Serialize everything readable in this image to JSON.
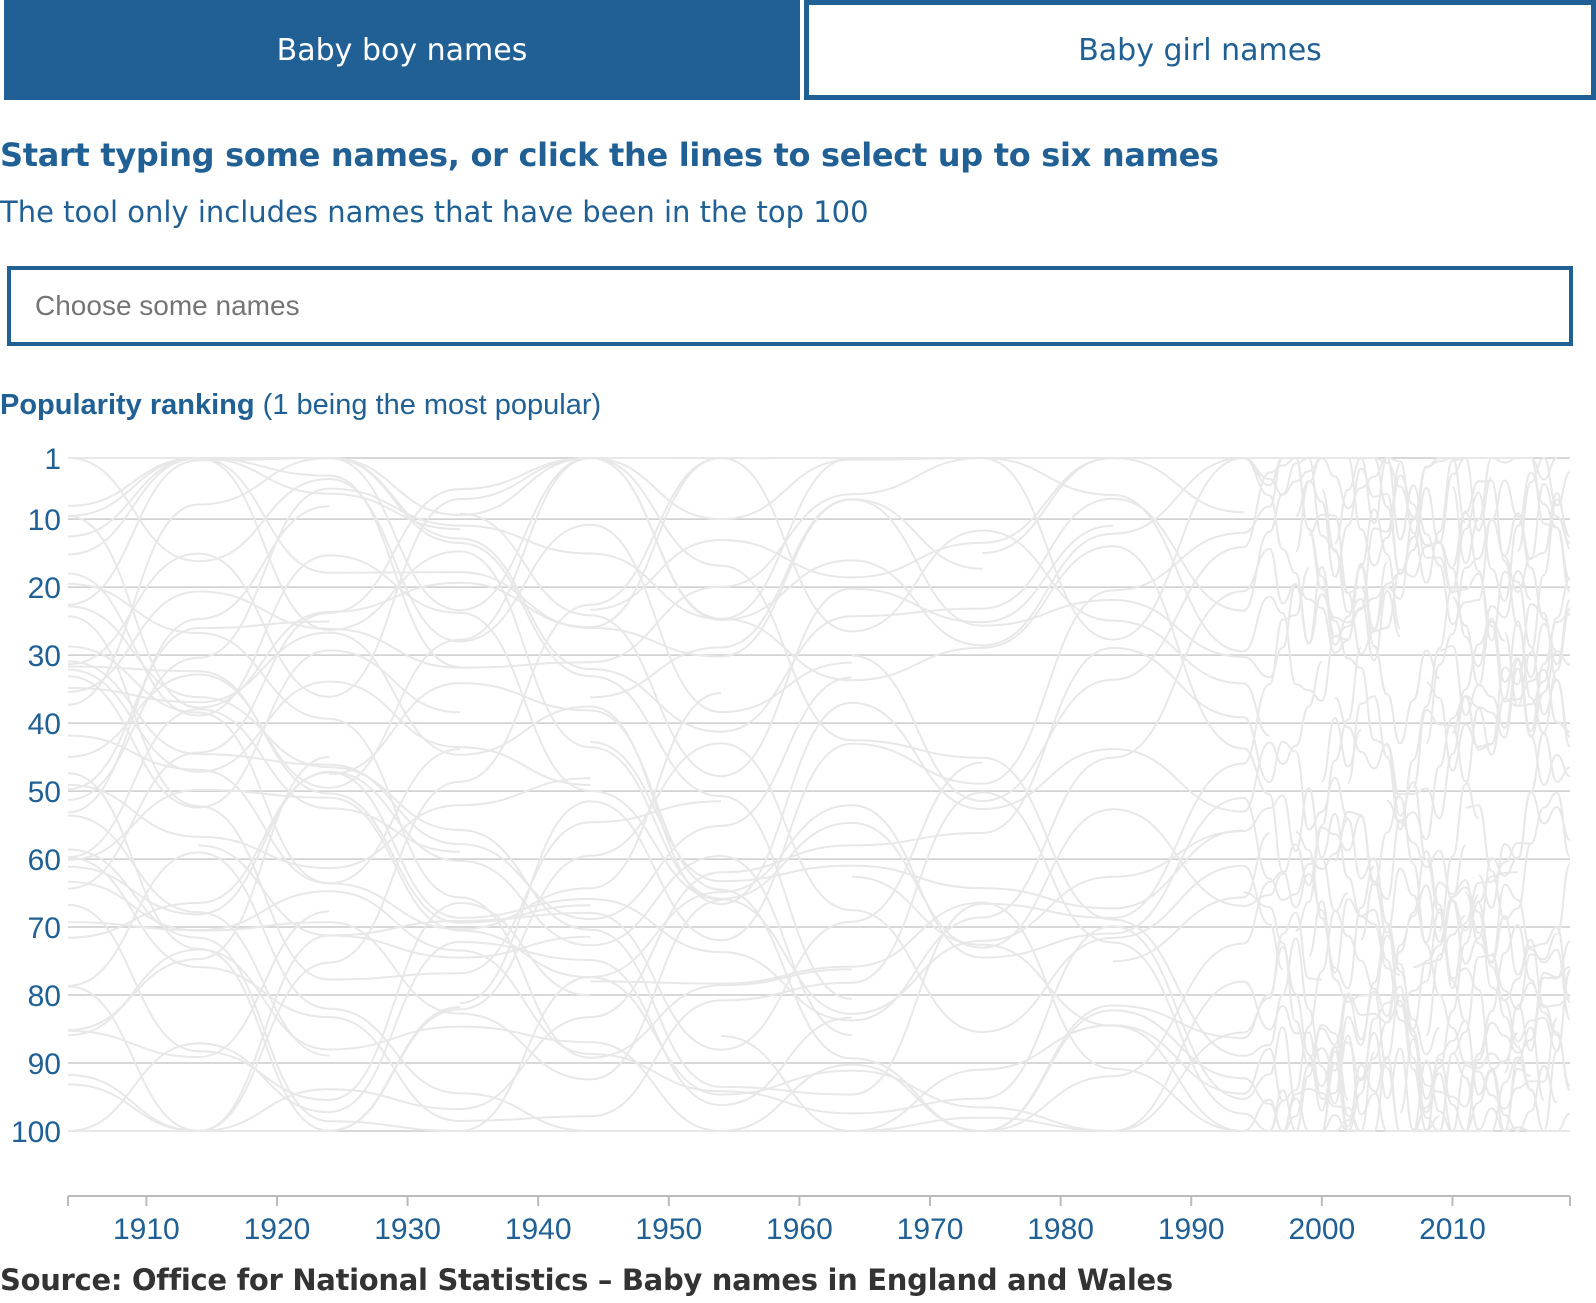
{
  "tabs": [
    {
      "label": "Baby boy names",
      "active": true
    },
    {
      "label": "Baby girl names",
      "active": false
    }
  ],
  "heading": "Start typing some names, or click the lines to select up to six names",
  "subheading": "The tool only includes names that have been in the top 100",
  "search": {
    "placeholder": "Choose some names",
    "value": ""
  },
  "chart_title": {
    "bold": "Popularity ranking",
    "normal": " (1 being the most popular)"
  },
  "colors": {
    "accent": "#206095",
    "lines": "#e8e8e8",
    "grid": "#cccccc",
    "source_text": "#333333"
  },
  "chart_data": {
    "type": "line",
    "title": "Popularity ranking (1 being the most popular)",
    "y_ticks": [
      "1",
      "10",
      "20",
      "30",
      "40",
      "50",
      "60",
      "70",
      "80",
      "90",
      "100"
    ],
    "y_tick_values": [
      1,
      10,
      20,
      30,
      40,
      50,
      60,
      70,
      80,
      90,
      100
    ],
    "ylim": [
      1,
      100
    ],
    "y_reversed": true,
    "x_ticks": [
      "1910",
      "1920",
      "1930",
      "1940",
      "1950",
      "1960",
      "1970",
      "1980",
      "1990",
      "2000",
      "2010"
    ],
    "x_tick_values": [
      1910,
      1920,
      1930,
      1940,
      1950,
      1960,
      1970,
      1980,
      1990,
      2000,
      2010
    ],
    "xlim": [
      1904,
      2019
    ],
    "data_years": [
      1904,
      1914,
      1924,
      1934,
      1944,
      1954,
      1964,
      1974,
      1984,
      1994,
      1996,
      1997,
      1998,
      1999,
      2000,
      2001,
      2002,
      2003,
      2004,
      2005,
      2006,
      2007,
      2008,
      2009,
      2010,
      2011,
      2012,
      2013,
      2014,
      2015,
      2016,
      2017,
      2018,
      2019
    ],
    "grid": true,
    "series_note_count": 0,
    "line_color": "#e8e8e8"
  },
  "source": "Source: Office for National Statistics – Baby names in England and Wales"
}
